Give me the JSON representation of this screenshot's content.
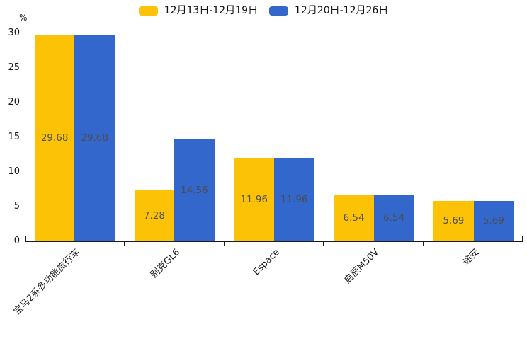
{
  "chart_data": {
    "type": "bar",
    "title": "",
    "xlabel": "",
    "ylabel": "%",
    "categories": [
      "宝马2系多功能旅行车",
      "别克GL6",
      "Espace",
      "启辰M50V",
      "途安"
    ],
    "series": [
      {
        "name": "12月13日-12月19日",
        "color": "#FCC306",
        "values": [
          29.68,
          7.28,
          11.96,
          6.54,
          5.69
        ]
      },
      {
        "name": "12月20日-12月26日",
        "color": "#3467CC",
        "values": [
          29.68,
          14.56,
          11.96,
          6.54,
          5.69
        ]
      }
    ],
    "ylim": [
      0,
      30
    ],
    "yticks": [
      0,
      5,
      10,
      15,
      20,
      25,
      30
    ],
    "legend_position": "top-center",
    "grid": false,
    "value_labels_inside_bars": true,
    "xtick_rotation_deg": 45
  },
  "colors": {
    "background": "#ffffff",
    "axis": "#1a1a1a",
    "tick_label": "#1a1a1a",
    "value_label": "#4d4d4d",
    "series_yellow": "#FCC306",
    "series_blue": "#3467CC"
  }
}
